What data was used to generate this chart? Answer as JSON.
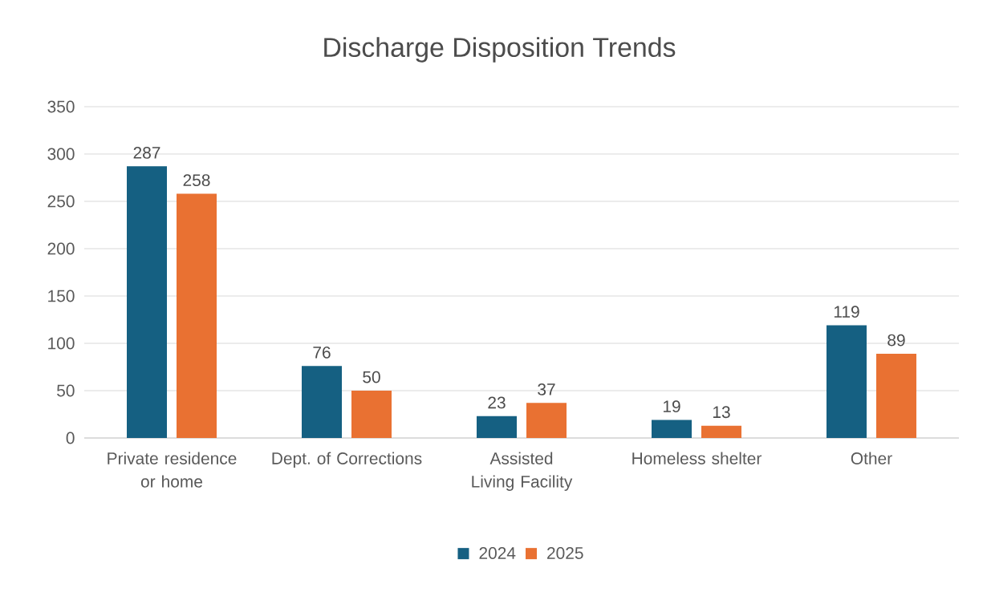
{
  "chart_data": {
    "type": "bar",
    "title": "Discharge Disposition Trends",
    "categories": [
      "Private residence or home",
      "Dept. of Corrections",
      "Assisted Living Facility",
      "Homeless shelter",
      "Other"
    ],
    "series": [
      {
        "name": "2024",
        "color": "#156082",
        "values": [
          287,
          76,
          23,
          19,
          119
        ]
      },
      {
        "name": "2025",
        "color": "#e97132",
        "values": [
          258,
          50,
          37,
          13,
          89
        ]
      }
    ],
    "ylim": [
      0,
      350
    ],
    "yticks": [
      0,
      50,
      100,
      150,
      200,
      250,
      300,
      350
    ],
    "grid": "y",
    "legend": "bottom",
    "data_labels": true
  }
}
